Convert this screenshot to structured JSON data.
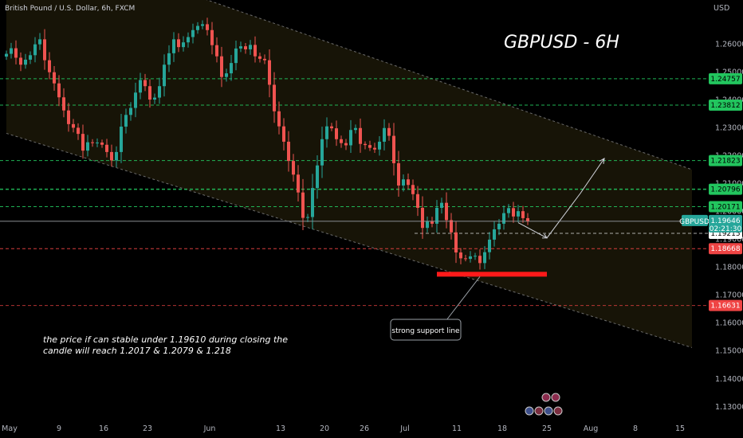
{
  "header": {
    "symbol": "British Pound / U.S. Dollar, 6h, FXCM",
    "currency": "USD"
  },
  "title": "GBPUSD - 6H",
  "note_lines": [
    "the price if can stable under 1.19610 during closing the",
    "candle will reach 1.2017 & 1.2079 & 1.218"
  ],
  "callout": "strong support line",
  "current": {
    "label": "GBPUSD",
    "price": "1.19646",
    "timer": "02:21:30",
    "color": "#26a69a"
  },
  "colors": {
    "up": "#26a69a",
    "down": "#ef5350",
    "resistance": "#22c55e",
    "support": "#ef4444",
    "channel_fill": "#1a1608",
    "support_bar": "#ff1a1a",
    "axis_text": "#b2b5be"
  },
  "chart_data": {
    "type": "candlestick",
    "x_axis": [
      "May",
      "9",
      "16",
      "23",
      "Jun",
      "13",
      "20",
      "26",
      "Jul",
      "11",
      "18",
      "25",
      "Aug",
      "8",
      "15"
    ],
    "y_axis": [
      "1.26000",
      "1.25000",
      "1.24000",
      "1.23000",
      "1.22000",
      "1.21000",
      "1.20000",
      "1.19000",
      "1.18000",
      "1.17000",
      "1.16000",
      "1.15000",
      "1.14000",
      "1.13000"
    ],
    "ylim": [
      1.1268,
      1.2735
    ],
    "price_levels": [
      {
        "value": 1.24757,
        "label": "1.24757",
        "kind": "resistance"
      },
      {
        "value": 1.23812,
        "label": "1.23812",
        "kind": "resistance"
      },
      {
        "value": 1.21823,
        "label": "1.21823",
        "kind": "resistance"
      },
      {
        "value": 1.20796,
        "label": "1.20796",
        "kind": "resistance"
      },
      {
        "value": 1.20171,
        "label": "1.20171",
        "kind": "resistance"
      },
      {
        "value": 1.19653,
        "label": "1.19653",
        "kind": "neutral"
      },
      {
        "value": 1.19215,
        "label": "1.19215",
        "kind": "neutral"
      },
      {
        "value": 1.18668,
        "label": "1.18668",
        "kind": "support"
      },
      {
        "value": 1.16631,
        "label": "1.16631",
        "kind": "support"
      }
    ],
    "closes": [
      1.2565,
      1.2585,
      1.2551,
      1.2526,
      1.2544,
      1.256,
      1.2599,
      1.2617,
      1.2542,
      1.2499,
      1.2459,
      1.2409,
      1.2362,
      1.2313,
      1.23,
      1.2278,
      1.2218,
      1.2248,
      1.2245,
      1.2247,
      1.2239,
      1.2213,
      1.2183,
      1.2213,
      1.2304,
      1.2346,
      1.2371,
      1.2426,
      1.2471,
      1.2449,
      1.2401,
      1.2408,
      1.2449,
      1.2526,
      1.2567,
      1.2617,
      1.2589,
      1.2606,
      1.2625,
      1.265,
      1.2665,
      1.2671,
      1.265,
      1.2596,
      1.2556,
      1.2482,
      1.2495,
      1.2532,
      1.2584,
      1.2592,
      1.2581,
      1.2597,
      1.2556,
      1.2547,
      1.2542,
      1.2454,
      1.2359,
      1.2305,
      1.225,
      1.2181,
      1.2132,
      1.2068,
      1.1977,
      1.198,
      1.2084,
      1.2165,
      1.2259,
      1.2305,
      1.2298,
      1.2259,
      1.2245,
      1.2237,
      1.2292,
      1.2299,
      1.2242,
      1.2238,
      1.2228,
      1.2222,
      1.225,
      1.2299,
      1.2271,
      1.2173,
      1.2093,
      1.2115,
      1.2095,
      1.2062,
      1.2013,
      1.1941,
      1.1964,
      1.1956,
      1.2013,
      1.2031,
      1.1969,
      1.1925,
      1.1853,
      1.1832,
      1.183,
      1.1839,
      1.1841,
      1.1815,
      1.1854,
      1.1899,
      1.1936,
      1.1956,
      1.1994,
      1.2012,
      1.1982,
      1.2001,
      1.1976,
      1.1965
    ],
    "projection": [
      [
        107,
        1.196
      ],
      [
        113,
        1.1905
      ],
      [
        120,
        1.2065
      ],
      [
        125,
        1.219
      ]
    ],
    "support_bar": {
      "x_from": 90,
      "x_to": 113,
      "value": 1.1775
    },
    "channel": {
      "upper": [
        [
          0,
          1.301
        ],
        [
          140,
          1.217
        ]
      ],
      "lower": [
        [
          0,
          1.228
        ],
        [
          140,
          1.153
        ]
      ]
    }
  }
}
